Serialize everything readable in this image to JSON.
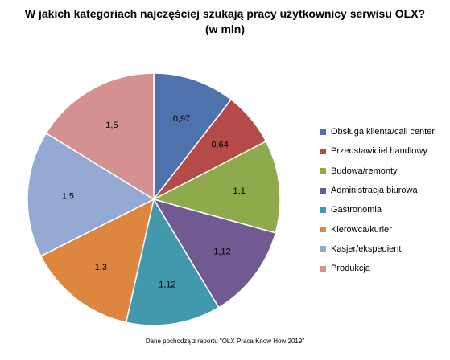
{
  "title_line1": "W jakich kategoriach najczęściej szukają pracy użytkownicy serwisu OLX?",
  "title_line2": "(w mln)",
  "source": "Dane pochodzą z raportu \"OLX Praca Know How 2019\"",
  "chart_data": {
    "type": "pie",
    "title": "W jakich kategoriach najczęściej szukają pracy użytkownicy serwisu OLX? (w mln)",
    "legend_position": "right",
    "slices": [
      {
        "label": "Obsługa klienta/call center",
        "value": 0.97,
        "value_label": "0,97",
        "color": "#4e72ab"
      },
      {
        "label": "Przedstawiciel handlowy",
        "value": 0.64,
        "value_label": "0,64",
        "color": "#b54b48"
      },
      {
        "label": "Budowa/remonty",
        "value": 1.1,
        "value_label": "1,1",
        "color": "#8eaa4d"
      },
      {
        "label": "Administracja biurowa",
        "value": 1.12,
        "value_label": "1,12",
        "color": "#715a92"
      },
      {
        "label": "Gastronomia",
        "value": 1.12,
        "value_label": "1,12",
        "color": "#4299ad"
      },
      {
        "label": "Kierowca/kurier",
        "value": 1.3,
        "value_label": "1,3",
        "color": "#dc8640"
      },
      {
        "label": "Kasjer/ekspedient",
        "value": 1.5,
        "value_label": "1,5",
        "color": "#95aad3"
      },
      {
        "label": "Produkcja",
        "value": 1.5,
        "value_label": "1,5",
        "color": "#d59090"
      }
    ]
  }
}
